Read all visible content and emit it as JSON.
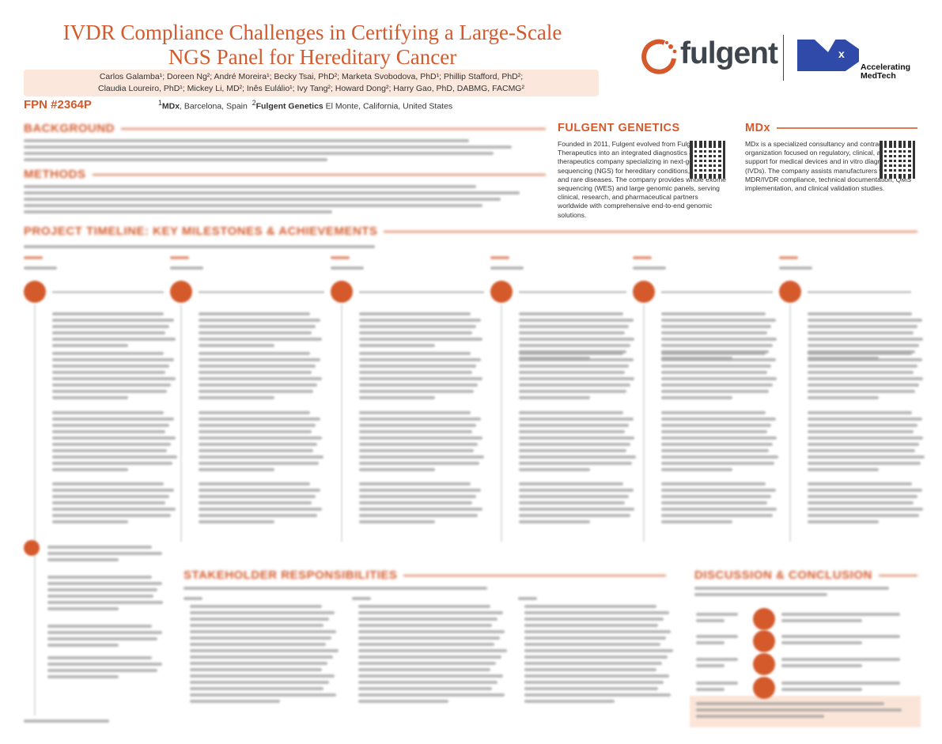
{
  "header": {
    "title_line1": "IVDR Compliance Challenges in Certifying a Large-Scale",
    "title_line2": "NGS Panel for Hereditary Cancer",
    "authors_line1": "Carlos Galamba¹; Doreen Ng²; André Moreira¹; Becky Tsai, PhD²; Marketa Svobodova, PhD¹; Phillip Stafford, PhD²;",
    "authors_line2": "Claudia Loureiro, PhD¹; Mickey Li, MD²; Inês Eulálio¹; Ivy Tang²; Howard Dong²; Harry Gao, PhD, DABMG, FACMG²",
    "fpn": "FPN #2364P",
    "affiliation1_sup": "1",
    "affiliation1_org": "MDx",
    "affiliation1_loc": ", Barcelona, Spain",
    "affiliation2_sup": "2",
    "affiliation2_org": "Fulgent Genetics",
    "affiliation2_loc": " El Monte, California, United States"
  },
  "logos": {
    "fulgent": "fulgent",
    "mdx": "MDx",
    "mdx_tagline1": "Accelerating",
    "mdx_tagline2": "MedTech"
  },
  "sections": {
    "background": "BACKGROUND",
    "methods": "METHODS",
    "timeline": "PROJECT TIMELINE: KEY MILESTONES & ACHIEVEMENTS",
    "stakeholders": "STAKEHOLDER RESPONSIBILITIES",
    "discussion": "DISCUSSION & CONCLUSION"
  },
  "fulgent_box": {
    "heading": "FULGENT GENETICS",
    "text": "Founded in 2011, Fulgent evolved from Fulgent Therapeutics into an integrated diagnostics and therapeutics company specializing in next-generation sequencing (NGS) for hereditary conditions, oncology, and rare diseases. The company provides whole exome sequencing (WES) and large genomic panels, serving clinical, research, and pharmaceutical partners worldwide with comprehensive end-to-end genomic solutions."
  },
  "mdx_box": {
    "heading": "MDx",
    "text": "MDx is a specialized consultancy and contract research organization focused on regulatory, clinical, and quality support for medical devices and in vitro diagnostics (IVDs). The company assists manufacturers with MDR/IVDR compliance, technical documentation, QMS implementation, and clinical validation studies."
  },
  "colors": {
    "accent": "#d45a2c",
    "author_band": "#fbe7dc",
    "mdx_blue": "#2f4aa8",
    "text": "#333333"
  },
  "icons": [
    "fulgent-logo-ring",
    "qr-code",
    "milestone-circle"
  ]
}
